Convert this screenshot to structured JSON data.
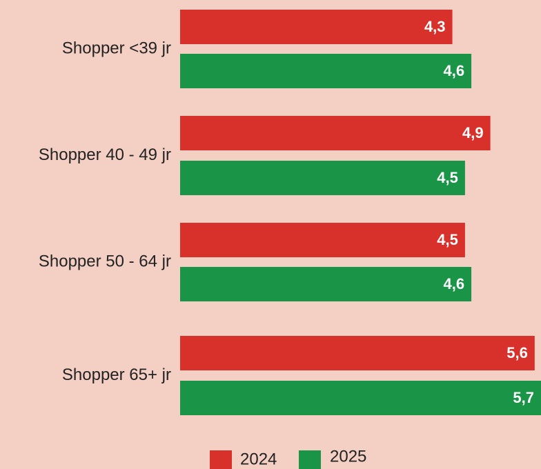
{
  "chart_data": {
    "type": "hbar",
    "categories": [
      "Shopper <39 jr",
      "Shopper 40 - 49 jr",
      "Shopper 50 - 64 jr",
      "Shopper 65+ jr"
    ],
    "series": [
      {
        "name": "2024",
        "color": "#d8302a",
        "values": [
          4.3,
          4.9,
          4.5,
          5.6
        ],
        "value_labels": [
          "4,3",
          "4,9",
          "4,5",
          "5,6"
        ]
      },
      {
        "name": "2025",
        "color": "#1a9447",
        "values": [
          4.6,
          4.5,
          4.6,
          5.7
        ],
        "value_labels": [
          "4,6",
          "4,5",
          "4,6",
          "5,7"
        ]
      }
    ],
    "xlim": [
      0,
      5.7
    ],
    "legend": "bottom"
  }
}
